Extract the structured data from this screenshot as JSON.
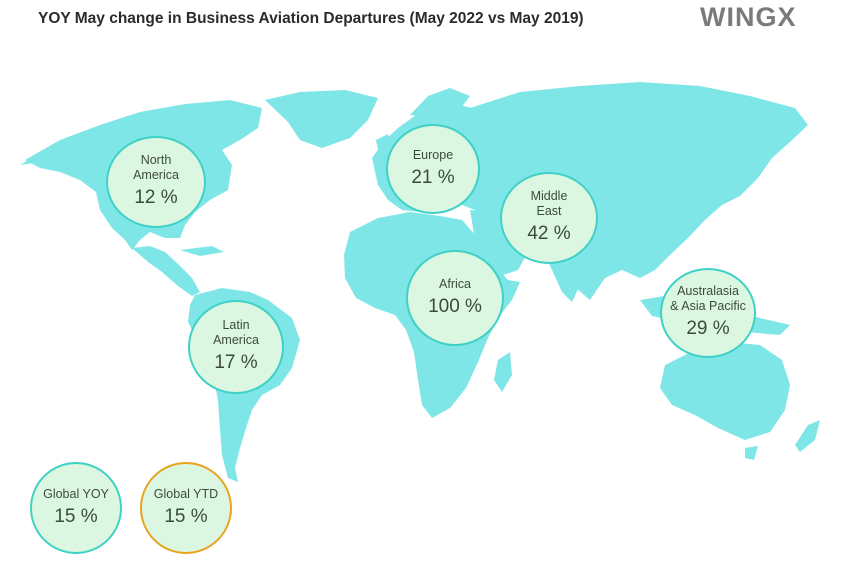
{
  "header": {
    "title": "YOY May change in Business Aviation Departures (May 2022 vs May 2019)",
    "brand": "WINGX"
  },
  "colors": {
    "land": "#7fe6e8",
    "bubble_fill": "#dcf7e1",
    "bubble_border": "#3fd1c5",
    "ytd_border": "#e8a320"
  },
  "regions": [
    {
      "label_lines": [
        "North",
        "America"
      ],
      "value": "12 %"
    },
    {
      "label_lines": [
        "Europe"
      ],
      "value": "21 %"
    },
    {
      "label_lines": [
        "Middle",
        "East"
      ],
      "value": "42 %"
    },
    {
      "label_lines": [
        "Africa"
      ],
      "value": "100 %"
    },
    {
      "label_lines": [
        "Australasia",
        "& Asia Pacific"
      ],
      "value": "29 %"
    },
    {
      "label_lines": [
        "Latin",
        "America"
      ],
      "value": "17 %"
    }
  ],
  "totals": {
    "global_yoy": {
      "label": "Global YOY",
      "value": "15 %"
    },
    "global_ytd": {
      "label": "Global YTD",
      "value": "15 %"
    }
  }
}
